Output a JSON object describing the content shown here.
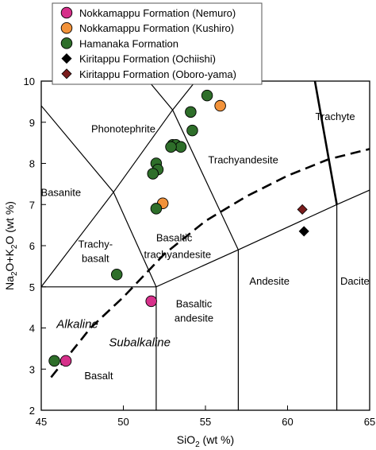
{
  "chart_data": {
    "type": "scatter",
    "xlim": [
      45,
      65
    ],
    "ylim": [
      2,
      10
    ],
    "x_ticks": [
      "45",
      "50",
      "55",
      "60",
      "65"
    ],
    "y_ticks": [
      "2",
      "3",
      "4",
      "5",
      "6",
      "7",
      "8",
      "9",
      "10"
    ],
    "xlabel": {
      "base": "SiO",
      "sub": "2",
      "rest": " (wt %)"
    },
    "ylabel": {
      "a": "Na",
      "a_sub": "2",
      "b": "O+K",
      "b_sub": "2",
      "c": "O (wt %)"
    },
    "legend_position": "top-left",
    "series": [
      {
        "name": "Nokkamappu Formation (Nemuro)",
        "marker": "circle",
        "color": "#d6308a",
        "points": [
          [
            51.7,
            4.65
          ],
          [
            46.5,
            3.2
          ]
        ]
      },
      {
        "name": "Nokkamappu Formation (Kushiro)",
        "marker": "circle",
        "color": "#f2923a",
        "points": [
          [
            55.9,
            9.4
          ],
          [
            52.4,
            7.03
          ]
        ]
      },
      {
        "name": "Hamanaka Formation",
        "marker": "circle",
        "color": "#2e6e2a",
        "points": [
          [
            55.1,
            9.65
          ],
          [
            54.1,
            9.25
          ],
          [
            54.2,
            8.8
          ],
          [
            53.0,
            8.45
          ],
          [
            53.2,
            8.45
          ],
          [
            53.5,
            8.4
          ],
          [
            52.9,
            8.4
          ],
          [
            52.0,
            8.0
          ],
          [
            52.1,
            7.85
          ],
          [
            51.8,
            7.75
          ],
          [
            52.0,
            6.9
          ],
          [
            49.6,
            5.3
          ],
          [
            45.8,
            3.2
          ]
        ]
      },
      {
        "name": "Kiritappu Formation (Ochiishi)",
        "marker": "diamond",
        "color": "#000000",
        "points": [
          [
            61.0,
            6.35
          ]
        ]
      },
      {
        "name": "Kiritappu Formation (Oboro-yama)",
        "marker": "diamond",
        "color": "#7a1c1c",
        "points": [
          [
            60.9,
            6.88
          ]
        ]
      }
    ],
    "field_labels": [
      {
        "text": "Phonotephrite",
        "x": 50.0,
        "y": 8.85
      },
      {
        "text": "Trachyte",
        "x": 62.9,
        "y": 9.15
      },
      {
        "text": "Trachyandesite",
        "x": 57.3,
        "y": 8.1
      },
      {
        "text": "Basanite",
        "x": 46.2,
        "y": 7.3
      },
      {
        "text": "Trachy-",
        "x": 48.3,
        "y": 6.05
      },
      {
        "text": "basalt",
        "x": 48.3,
        "y": 5.7
      },
      {
        "text": "Basaltic",
        "x": 53.1,
        "y": 6.2
      },
      {
        "text": "trachyandesite",
        "x": 53.3,
        "y": 5.8
      },
      {
        "text": "Andesite",
        "x": 58.9,
        "y": 5.15
      },
      {
        "text": "Dacite",
        "x": 64.1,
        "y": 5.15
      },
      {
        "text": "Basaltic",
        "x": 54.3,
        "y": 4.6
      },
      {
        "text": "andesite",
        "x": 54.3,
        "y": 4.25
      },
      {
        "text": "Basalt",
        "x": 48.5,
        "y": 2.85
      }
    ],
    "series_labels": [
      {
        "text": "Alkaline",
        "x": 47.2,
        "y": 4.1
      },
      {
        "text": "Subalkaline",
        "x": 51.0,
        "y": 3.65
      }
    ],
    "boundaries": [
      [
        [
          45,
          5
        ],
        [
          52,
          5
        ],
        [
          57,
          5.9
        ],
        [
          63,
          7
        ],
        [
          65,
          7.35
        ]
      ],
      [
        [
          52,
          2
        ],
        [
          52,
          5
        ]
      ],
      [
        [
          57,
          2
        ],
        [
          57,
          5.9
        ]
      ],
      [
        [
          63,
          2
        ],
        [
          63,
          7
        ]
      ],
      [
        [
          45,
          5
        ],
        [
          49.4,
          7.3
        ],
        [
          53,
          9.3
        ],
        [
          57.8,
          11.7
        ]
      ],
      [
        [
          52,
          5
        ],
        [
          49.4,
          7.3
        ],
        [
          45,
          9.4
        ]
      ],
      [
        [
          57,
          5.9
        ],
        [
          53,
          9.3
        ],
        [
          48.4,
          11.5
        ]
      ],
      [
        [
          63,
          7
        ],
        [
          61,
          11.5
        ]
      ],
      [
        [
          45,
          5
        ],
        [
          45,
          9.4
        ]
      ]
    ],
    "dashed_boundary": [
      [
        45.6,
        2.8
      ],
      [
        48.0,
        4.0
      ],
      [
        50.0,
        4.75
      ],
      [
        52.5,
        5.8
      ],
      [
        55.0,
        6.6
      ],
      [
        57.5,
        7.2
      ],
      [
        60.0,
        7.7
      ],
      [
        62.5,
        8.1
      ],
      [
        65.0,
        8.35
      ]
    ]
  }
}
